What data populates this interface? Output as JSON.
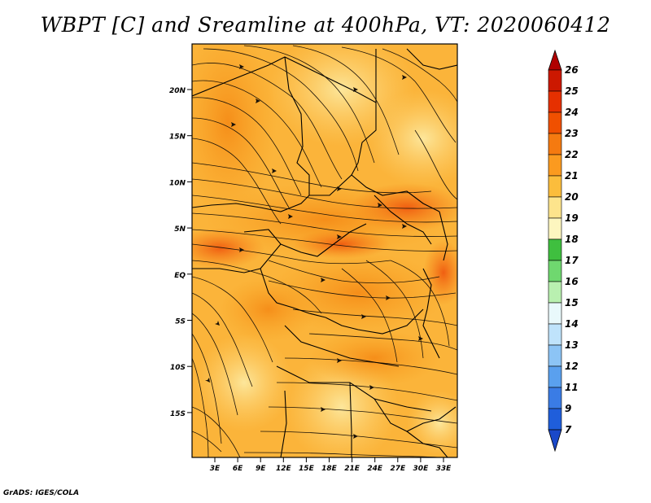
{
  "title": "WBPT [C] and Sreamline at 400hPa, VT: 2020060412",
  "credit": "GrADS: IGES/COLA",
  "map": {
    "lat_ticks": [
      "20N",
      "15N",
      "10N",
      "5N",
      "EQ",
      "5S",
      "10S",
      "15S"
    ],
    "lon_ticks": [
      "3E",
      "6E",
      "9E",
      "12E",
      "15E",
      "18E",
      "21E",
      "24E",
      "27E",
      "30E",
      "33E"
    ]
  },
  "colorbar": {
    "labels": [
      "26",
      "25",
      "24",
      "23",
      "22",
      "21",
      "20",
      "19",
      "18",
      "17",
      "16",
      "15",
      "14",
      "13",
      "12",
      "11",
      "9",
      "7"
    ],
    "colors": [
      "#b00000",
      "#cc1800",
      "#e63000",
      "#f05000",
      "#f57a10",
      "#fb9a1f",
      "#fbbd3c",
      "#fde48c",
      "#fdf6bf",
      "#3fbf3f",
      "#6fd86f",
      "#b9f0b0",
      "#e9f9fb",
      "#bfe3fb",
      "#8cc4f5",
      "#5aa0ee",
      "#3a7ce5",
      "#1f5edb",
      "#1a48c9"
    ]
  }
}
